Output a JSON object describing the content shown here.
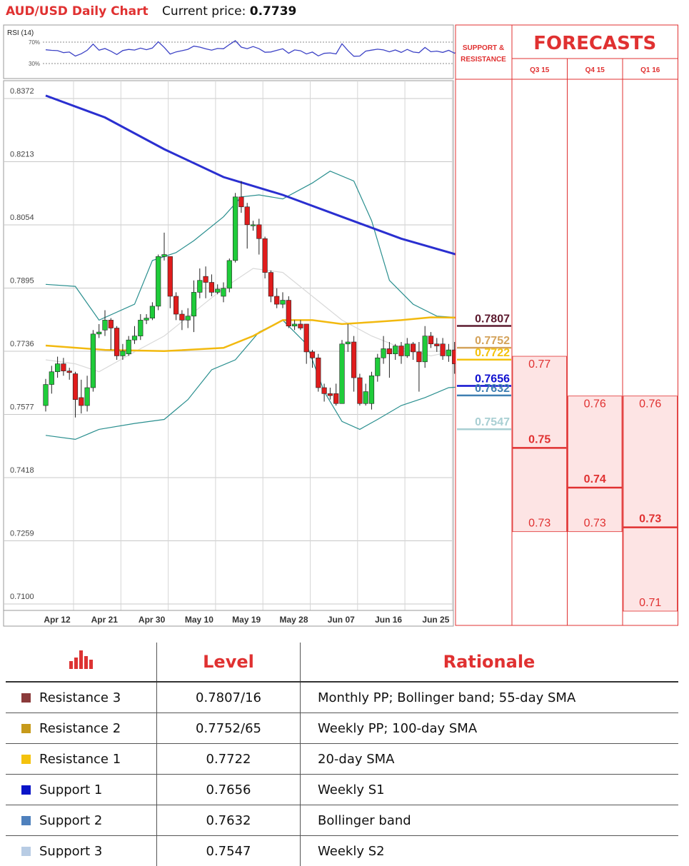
{
  "header": {
    "title": "AUD/USD Daily Chart",
    "price_label": "Current price:",
    "price_value": "0.7739"
  },
  "chart_data": {
    "type": "candlestick",
    "indicator": {
      "label": "RSI (14)",
      "levels": [
        "70%",
        "30%"
      ]
    },
    "y_ticks": [
      "0.8372",
      "0.8213",
      "0.8054",
      "0.7895",
      "0.7736",
      "0.7577",
      "0.7418",
      "0.7259",
      "0.7100"
    ],
    "y_range": [
      0.71,
      0.8372
    ],
    "x_ticks": [
      "Apr 12",
      "Apr 21",
      "Apr 30",
      "May 10",
      "May 19",
      "May 28",
      "Jun 07",
      "Jun 16",
      "Jun 25"
    ],
    "candles": [
      [
        0.7585,
        0.7638,
        0.757,
        0.7652
      ],
      [
        0.7638,
        0.767,
        0.7615,
        0.7685
      ],
      [
        0.767,
        0.769,
        0.7655,
        0.7708
      ],
      [
        0.769,
        0.7672,
        0.766,
        0.7705
      ],
      [
        0.7672,
        0.7668,
        0.765,
        0.768
      ],
      [
        0.7665,
        0.76,
        0.7555,
        0.767
      ],
      [
        0.7605,
        0.7585,
        0.7565,
        0.765
      ],
      [
        0.7585,
        0.763,
        0.757,
        0.766
      ],
      [
        0.763,
        0.7765,
        0.762,
        0.7775
      ],
      [
        0.7765,
        0.777,
        0.7755,
        0.779
      ],
      [
        0.7775,
        0.78,
        0.776,
        0.7825
      ],
      [
        0.78,
        0.778,
        0.7725,
        0.7805
      ],
      [
        0.778,
        0.771,
        0.77,
        0.7785
      ],
      [
        0.771,
        0.7722,
        0.77,
        0.774
      ],
      [
        0.7715,
        0.775,
        0.771,
        0.776
      ],
      [
        0.775,
        0.776,
        0.774,
        0.7785
      ],
      [
        0.776,
        0.78,
        0.775,
        0.7815
      ],
      [
        0.78,
        0.7805,
        0.779,
        0.7815
      ],
      [
        0.7805,
        0.7835,
        0.78,
        0.7845
      ],
      [
        0.7835,
        0.796,
        0.7825,
        0.7965
      ],
      [
        0.796,
        0.7965,
        0.795,
        0.802
      ],
      [
        0.796,
        0.786,
        0.783,
        0.796
      ],
      [
        0.786,
        0.7815,
        0.78,
        0.787
      ],
      [
        0.7815,
        0.78,
        0.7775,
        0.7825
      ],
      [
        0.78,
        0.781,
        0.778,
        0.783
      ],
      [
        0.781,
        0.787,
        0.777,
        0.79
      ],
      [
        0.787,
        0.79,
        0.7855,
        0.793
      ],
      [
        0.791,
        0.7895,
        0.7855,
        0.7935
      ],
      [
        0.7895,
        0.787,
        0.786,
        0.7915
      ],
      [
        0.787,
        0.7878,
        0.7865,
        0.789
      ],
      [
        0.786,
        0.788,
        0.7845,
        0.7895
      ],
      [
        0.788,
        0.795,
        0.787,
        0.7955
      ],
      [
        0.795,
        0.811,
        0.7945,
        0.812
      ],
      [
        0.811,
        0.8085,
        0.807,
        0.815
      ],
      [
        0.8085,
        0.804,
        0.798,
        0.8095
      ],
      [
        0.804,
        0.804,
        0.8025,
        0.805
      ],
      [
        0.804,
        0.8005,
        0.7965,
        0.8055
      ],
      [
        0.8005,
        0.792,
        0.7905,
        0.801
      ],
      [
        0.792,
        0.786,
        0.7845,
        0.7925
      ],
      [
        0.786,
        0.784,
        0.783,
        0.788
      ],
      [
        0.784,
        0.785,
        0.783,
        0.787
      ],
      [
        0.785,
        0.7785,
        0.778,
        0.786
      ],
      [
        0.7785,
        0.779,
        0.7775,
        0.78
      ],
      [
        0.779,
        0.778,
        0.7775,
        0.78
      ],
      [
        0.779,
        0.772,
        0.769,
        0.779
      ],
      [
        0.772,
        0.7705,
        0.768,
        0.7725
      ],
      [
        0.7705,
        0.763,
        0.762,
        0.7715
      ],
      [
        0.763,
        0.7615,
        0.7595,
        0.764
      ],
      [
        0.7615,
        0.761,
        0.76,
        0.763
      ],
      [
        0.7615,
        0.759,
        0.7585,
        0.764
      ],
      [
        0.759,
        0.774,
        0.759,
        0.775
      ],
      [
        0.774,
        0.7745,
        0.772,
        0.779
      ],
      [
        0.7745,
        0.7655,
        0.762,
        0.776
      ],
      [
        0.7655,
        0.759,
        0.7585,
        0.7665
      ],
      [
        0.759,
        0.762,
        0.7585,
        0.764
      ],
      [
        0.759,
        0.766,
        0.7575,
        0.767
      ],
      [
        0.766,
        0.7705,
        0.7645,
        0.7715
      ],
      [
        0.7705,
        0.7728,
        0.769,
        0.776
      ],
      [
        0.7728,
        0.7715,
        0.7655,
        0.7745
      ],
      [
        0.7715,
        0.7735,
        0.77,
        0.774
      ],
      [
        0.7735,
        0.771,
        0.769,
        0.7745
      ],
      [
        0.771,
        0.774,
        0.7705,
        0.7755
      ],
      [
        0.774,
        0.772,
        0.77,
        0.7745
      ],
      [
        0.772,
        0.7695,
        0.762,
        0.7745
      ],
      [
        0.7695,
        0.776,
        0.768,
        0.7785
      ],
      [
        0.776,
        0.774,
        0.773,
        0.777
      ],
      [
        0.774,
        0.7735,
        0.772,
        0.7755
      ],
      [
        0.774,
        0.771,
        0.77,
        0.7755
      ],
      [
        0.771,
        0.7725,
        0.7695,
        0.774
      ],
      [
        0.7725,
        0.769,
        0.7665,
        0.7745
      ],
      [
        0.769,
        0.7725,
        0.7685,
        0.773
      ]
    ],
    "sma_blue": [
      [
        0,
        0.8365
      ],
      [
        10,
        0.831
      ],
      [
        20,
        0.823
      ],
      [
        30,
        0.816
      ],
      [
        40,
        0.8115
      ],
      [
        50,
        0.806
      ],
      [
        60,
        0.8005
      ],
      [
        70,
        0.7962
      ]
    ],
    "sma_yellow": [
      [
        0,
        0.7736
      ],
      [
        10,
        0.7725
      ],
      [
        20,
        0.7722
      ],
      [
        30,
        0.773
      ],
      [
        35,
        0.776
      ],
      [
        40,
        0.78
      ],
      [
        45,
        0.78
      ],
      [
        50,
        0.779
      ],
      [
        55,
        0.7795
      ],
      [
        60,
        0.78
      ],
      [
        65,
        0.7807
      ],
      [
        70,
        0.7806
      ]
    ],
    "boll_upper": [
      [
        0,
        0.789
      ],
      [
        5,
        0.7885
      ],
      [
        9,
        0.78
      ],
      [
        15,
        0.784
      ],
      [
        18,
        0.795
      ],
      [
        22,
        0.797
      ],
      [
        25,
        0.8
      ],
      [
        30,
        0.806
      ],
      [
        33,
        0.811
      ],
      [
        36,
        0.8115
      ],
      [
        40,
        0.8105
      ],
      [
        45,
        0.8145
      ],
      [
        48,
        0.8175
      ],
      [
        52,
        0.815
      ],
      [
        55,
        0.805
      ],
      [
        58,
        0.79
      ],
      [
        62,
        0.784
      ],
      [
        66,
        0.781
      ],
      [
        70,
        0.7806
      ]
    ],
    "boll_lower": [
      [
        0,
        0.751
      ],
      [
        5,
        0.75
      ],
      [
        9,
        0.7525
      ],
      [
        15,
        0.754
      ],
      [
        20,
        0.755
      ],
      [
        24,
        0.76
      ],
      [
        28,
        0.7675
      ],
      [
        32,
        0.77
      ],
      [
        36,
        0.777
      ],
      [
        40,
        0.78
      ],
      [
        44,
        0.774
      ],
      [
        47,
        0.762
      ],
      [
        50,
        0.7545
      ],
      [
        53,
        0.7525
      ],
      [
        56,
        0.755
      ],
      [
        60,
        0.7585
      ],
      [
        64,
        0.7605
      ],
      [
        68,
        0.763
      ],
      [
        70,
        0.7632
      ]
    ],
    "boll_mid": [
      [
        0,
        0.77
      ],
      [
        5,
        0.769
      ],
      [
        9,
        0.767
      ],
      [
        15,
        0.772
      ],
      [
        20,
        0.776
      ],
      [
        25,
        0.782
      ],
      [
        30,
        0.788
      ],
      [
        35,
        0.793
      ],
      [
        40,
        0.792
      ],
      [
        45,
        0.786
      ],
      [
        50,
        0.78
      ],
      [
        55,
        0.776
      ],
      [
        60,
        0.773
      ],
      [
        65,
        0.771
      ],
      [
        70,
        0.7725
      ]
    ]
  },
  "support_resistance": {
    "header": "SUPPORT & RESISTANCE",
    "levels": [
      {
        "value": "0.7807",
        "color": "#5c1a2e"
      },
      {
        "value": "0.7752",
        "color": "#d4a35c"
      },
      {
        "value": "0.7722",
        "color": "#f4c20d"
      },
      {
        "value": "0.7656",
        "color": "#1010d0"
      },
      {
        "value": "0.7632",
        "color": "#3f7fb2"
      },
      {
        "value": "0.7547",
        "color": "#a9cfd3"
      }
    ]
  },
  "forecasts": {
    "title": "FORECASTS",
    "columns": [
      {
        "label": "Q3 15",
        "high": "0.77",
        "mid": "0.75",
        "low": "0.73"
      },
      {
        "label": "Q4 15",
        "high": "0.76",
        "mid": "0.74",
        "low": "0.73"
      },
      {
        "label": "Q1 16",
        "high": "0.76",
        "mid": "0.73",
        "low": "0.71"
      }
    ]
  },
  "levels_table": {
    "icon": "bar-chart-icon",
    "level_header": "Level",
    "rationale_header": "Rationale",
    "rows": [
      {
        "name": "Resistance 3",
        "color": "#8b3a3a",
        "level": "0.7807/16",
        "rationale": "Monthly PP; Bollinger band; 55-day SMA"
      },
      {
        "name": "Resistance 2",
        "color": "#c79a1a",
        "level": "0.7752/65",
        "rationale": "Weekly PP; 100-day SMA"
      },
      {
        "name": "Resistance 1",
        "color": "#f4c20d",
        "level": "0.7722",
        "rationale": "20-day SMA"
      },
      {
        "name": "Support 1",
        "color": "#0a14c8",
        "level": "0.7656",
        "rationale": "Weekly S1"
      },
      {
        "name": "Support 2",
        "color": "#4f81bd",
        "level": "0.7632",
        "rationale": "Bollinger band"
      },
      {
        "name": "Support 3",
        "color": "#b8cce4",
        "level": "0.7547",
        "rationale": "Weekly S2"
      }
    ]
  }
}
